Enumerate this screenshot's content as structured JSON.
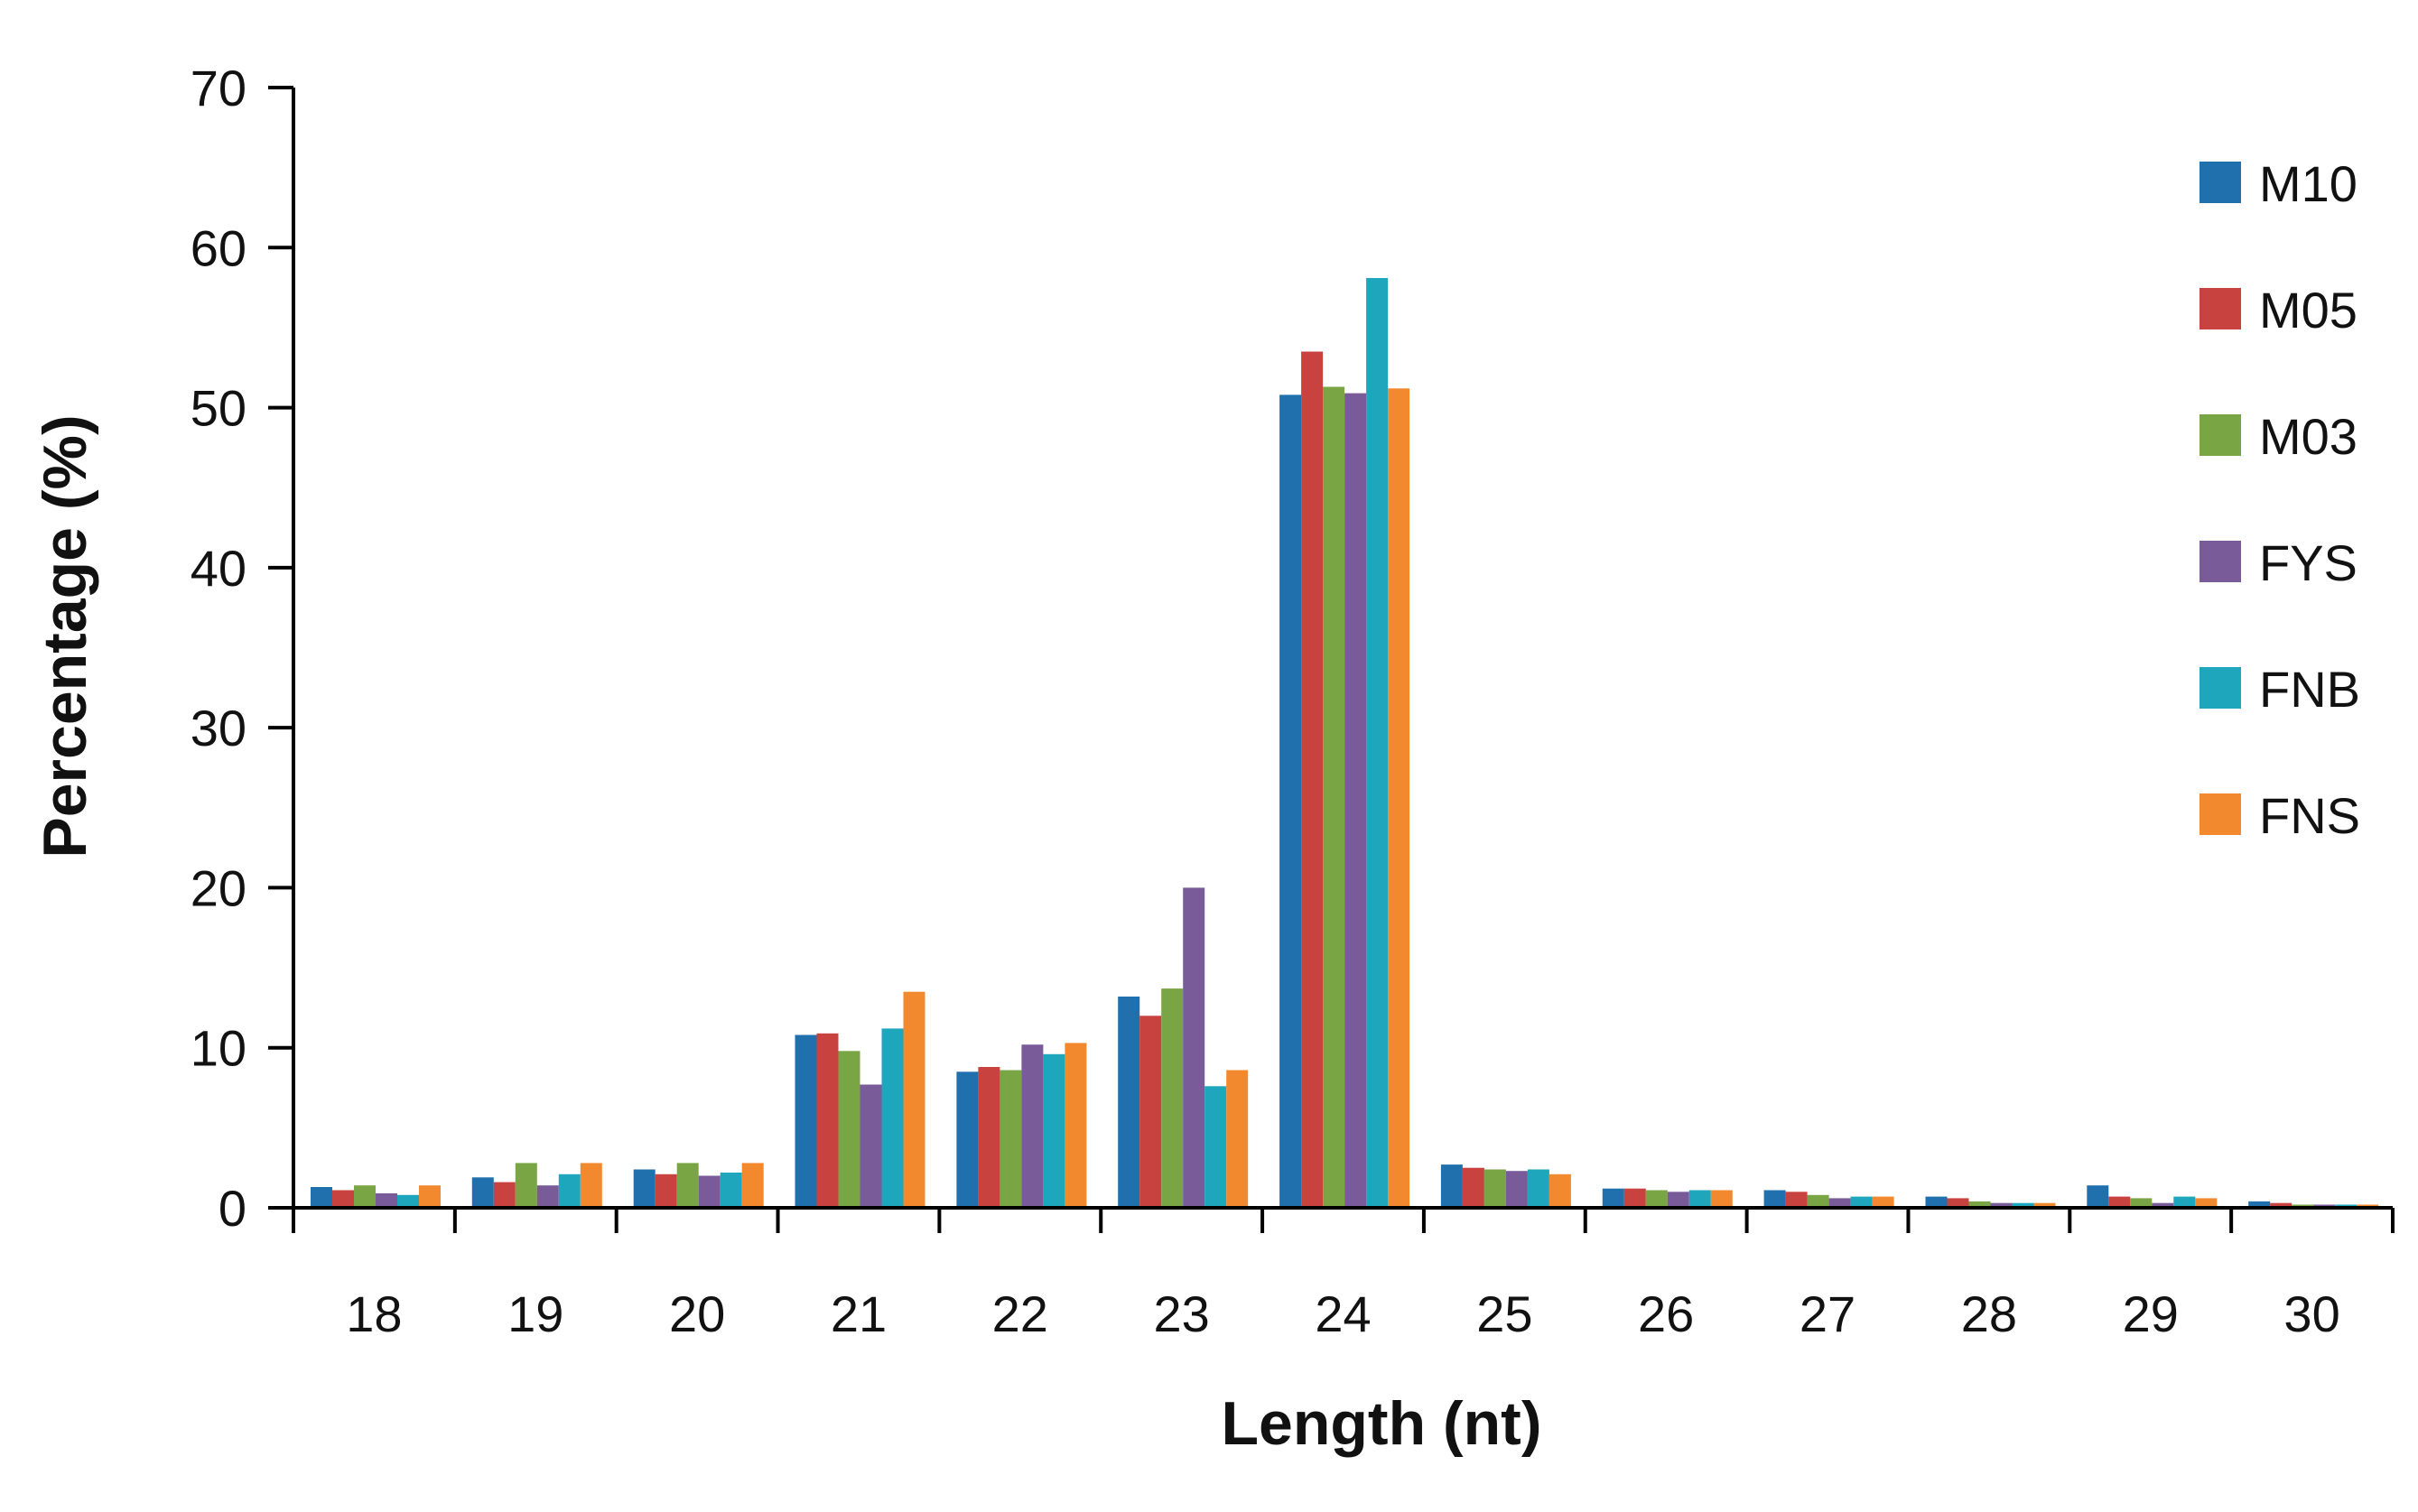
{
  "chart_data": {
    "type": "bar",
    "title": "",
    "xlabel": "Length (nt)",
    "ylabel": "Percentage (%)",
    "ylim": [
      0,
      70
    ],
    "yticks": [
      0,
      10,
      20,
      30,
      40,
      50,
      60,
      70
    ],
    "grid": false,
    "legend_position": "right",
    "categories": [
      "18",
      "19",
      "20",
      "21",
      "22",
      "23",
      "24",
      "25",
      "26",
      "27",
      "28",
      "29",
      "30"
    ],
    "series": [
      {
        "name": "M10",
        "color": "#2070ad",
        "values": [
          1.3,
          1.9,
          2.4,
          10.8,
          8.5,
          13.2,
          50.8,
          2.7,
          1.2,
          1.1,
          0.7,
          1.4,
          0.4
        ]
      },
      {
        "name": "M05",
        "color": "#c8423f",
        "values": [
          1.1,
          1.6,
          2.1,
          10.9,
          8.8,
          12.0,
          53.5,
          2.5,
          1.2,
          1.0,
          0.6,
          0.7,
          0.3
        ]
      },
      {
        "name": "M03",
        "color": "#7aa544",
        "values": [
          1.4,
          2.8,
          2.8,
          9.8,
          8.6,
          13.7,
          51.3,
          2.4,
          1.1,
          0.8,
          0.4,
          0.6,
          0.2
        ]
      },
      {
        "name": "FYS",
        "color": "#7a5b99",
        "values": [
          0.9,
          1.4,
          2.0,
          7.7,
          10.2,
          20.0,
          50.9,
          2.3,
          1.0,
          0.6,
          0.3,
          0.3,
          0.2
        ]
      },
      {
        "name": "FNB",
        "color": "#1ea6bd",
        "values": [
          0.8,
          2.1,
          2.2,
          11.2,
          9.6,
          7.6,
          58.1,
          2.4,
          1.1,
          0.7,
          0.3,
          0.7,
          0.2
        ]
      },
      {
        "name": "FNS",
        "color": "#f2892f",
        "values": [
          1.4,
          2.8,
          2.8,
          13.5,
          10.3,
          8.6,
          51.2,
          2.1,
          1.1,
          0.7,
          0.3,
          0.6,
          0.2
        ]
      }
    ]
  }
}
